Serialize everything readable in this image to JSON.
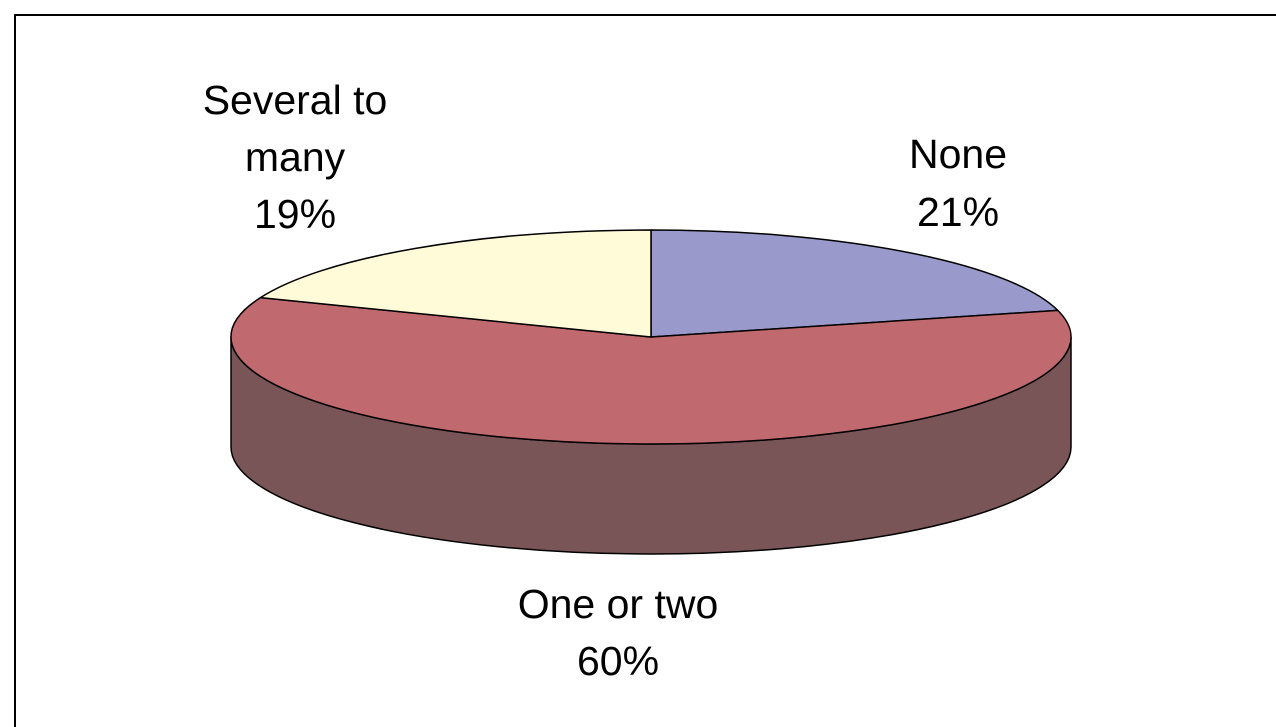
{
  "chart_data": {
    "type": "pie",
    "title": "",
    "three_d": true,
    "slices": [
      {
        "label_lines": [
          "None"
        ],
        "pct_label": "21%",
        "value": 21,
        "color": "#9999CC",
        "side_color": "#6f6f99"
      },
      {
        "label_lines": [
          "One or two"
        ],
        "pct_label": "60%",
        "value": 60,
        "color": "#C0696F",
        "side_color": "#7A5557"
      },
      {
        "label_lines": [
          "Several to",
          "many"
        ],
        "pct_label": "19%",
        "value": 19,
        "color": "#FFFBD8",
        "side_color": "#b8b49a"
      }
    ]
  }
}
